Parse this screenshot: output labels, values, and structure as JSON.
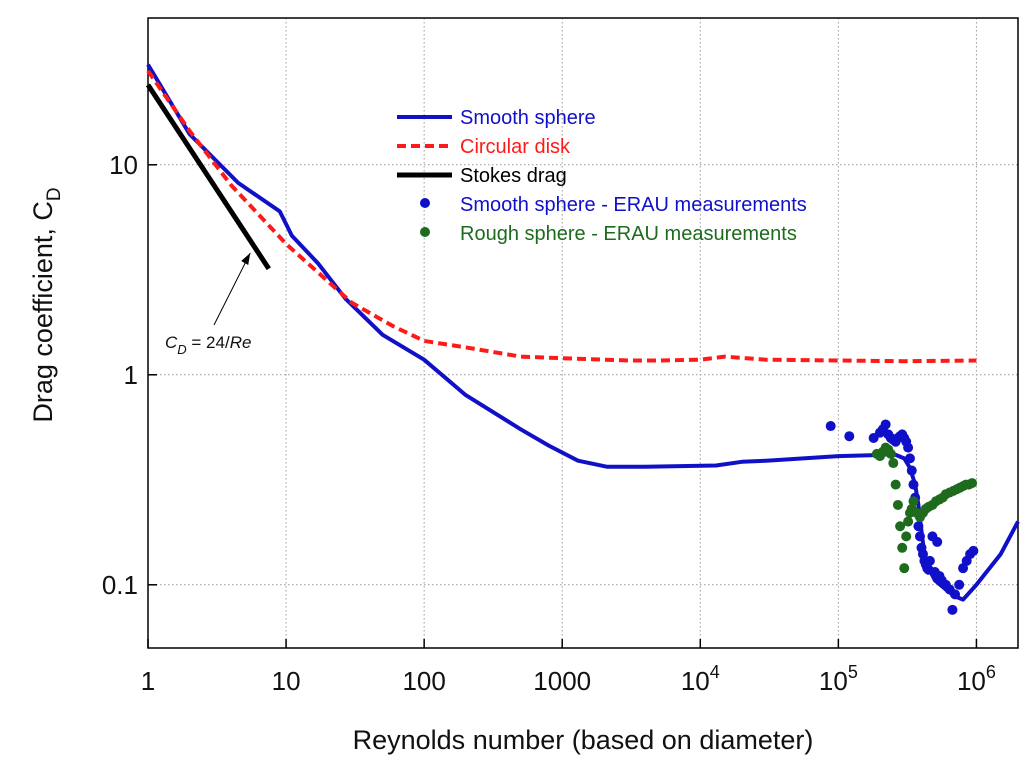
{
  "chart_data": {
    "type": "line",
    "scale": {
      "x": "log",
      "y": "log"
    },
    "xlim": [
      1,
      2000000
    ],
    "ylim": [
      0.05,
      50
    ],
    "grid": true,
    "xlabel": "Reynolds number (based on diameter)",
    "ylabel": {
      "main": "Drag coefficient, C",
      "sub": "D"
    },
    "x_ticks": [
      {
        "value": 1,
        "base": "1",
        "exp": ""
      },
      {
        "value": 10,
        "base": "10",
        "exp": ""
      },
      {
        "value": 100,
        "base": "100",
        "exp": ""
      },
      {
        "value": 1000,
        "base": "1000",
        "exp": ""
      },
      {
        "value": 10000,
        "base": "10",
        "exp": "4"
      },
      {
        "value": 100000,
        "base": "10",
        "exp": "5"
      },
      {
        "value": 1000000,
        "base": "10",
        "exp": "6"
      }
    ],
    "y_ticks": [
      {
        "value": 10,
        "label": "10"
      },
      {
        "value": 1,
        "label": "1"
      },
      {
        "value": 0.1,
        "label": "0.1"
      }
    ],
    "legend_position": "upper-center",
    "series": [
      {
        "name": "Smooth sphere",
        "kind": "line",
        "color": "#1010c8",
        "dash": "solid",
        "x": [
          1,
          2,
          4.5,
          9,
          11,
          17,
          27,
          50,
          100,
          200,
          500,
          800,
          1300,
          2100,
          4000,
          13000,
          20000,
          30000,
          100000,
          200000,
          250000,
          300000,
          330000,
          360000,
          380000,
          400000,
          420000,
          450000,
          500000,
          600000,
          700000,
          800000,
          1000000,
          1500000,
          2000000
        ],
        "y": [
          30,
          14,
          8.2,
          6,
          4.6,
          3.4,
          2.3,
          1.55,
          1.18,
          0.8,
          0.55,
          0.46,
          0.39,
          0.365,
          0.365,
          0.37,
          0.385,
          0.39,
          0.41,
          0.415,
          0.42,
          0.4,
          0.36,
          0.3,
          0.24,
          0.18,
          0.14,
          0.12,
          0.105,
          0.095,
          0.088,
          0.085,
          0.1,
          0.14,
          0.2
        ]
      },
      {
        "name": "Circular disk",
        "kind": "line",
        "color": "#ff1a1a",
        "dash": "dashed",
        "x": [
          1,
          2,
          4,
          10,
          30,
          60,
          100,
          200,
          500,
          1000,
          3000,
          5000,
          10000,
          15000,
          30000,
          100000,
          300000,
          1000000
        ],
        "y": [
          28,
          14.5,
          8,
          4.2,
          2.2,
          1.7,
          1.45,
          1.35,
          1.22,
          1.2,
          1.17,
          1.17,
          1.18,
          1.22,
          1.18,
          1.17,
          1.16,
          1.17
        ]
      },
      {
        "name": "Stokes drag",
        "kind": "line",
        "color": "#000000",
        "dash": "solid",
        "x": [
          1,
          7.5
        ],
        "y": [
          24,
          3.2
        ]
      },
      {
        "name": "Smooth sphere - ERAU measurements",
        "kind": "scatter",
        "color": "#1010c8",
        "x": [
          88000,
          120000,
          180000,
          200000,
          210000,
          220000,
          230000,
          240000,
          250000,
          260000,
          270000,
          280000,
          290000,
          300000,
          310000,
          320000,
          330000,
          340000,
          350000,
          360000,
          370000,
          380000,
          390000,
          400000,
          410000,
          420000,
          430000,
          440000,
          450000,
          460000,
          480000,
          500000,
          520000,
          540000,
          560000,
          600000,
          640000,
          670000,
          700000,
          750000,
          800000,
          850000,
          900000,
          950000
        ],
        "y": [
          0.57,
          0.51,
          0.5,
          0.53,
          0.55,
          0.58,
          0.52,
          0.5,
          0.49,
          0.48,
          0.5,
          0.51,
          0.52,
          0.5,
          0.48,
          0.45,
          0.4,
          0.35,
          0.3,
          0.26,
          0.22,
          0.19,
          0.17,
          0.15,
          0.14,
          0.13,
          0.125,
          0.12,
          0.118,
          0.13,
          0.17,
          0.115,
          0.16,
          0.11,
          0.105,
          0.1,
          0.095,
          0.076,
          0.09,
          0.1,
          0.12,
          0.13,
          0.14,
          0.145
        ]
      },
      {
        "name": "Rough sphere - ERAU measurements",
        "kind": "scatter",
        "color": "#1e6b1e",
        "x": [
          190000,
          200000,
          210000,
          220000,
          230000,
          240000,
          250000,
          260000,
          270000,
          280000,
          290000,
          300000,
          310000,
          320000,
          330000,
          340000,
          350000,
          370000,
          390000,
          410000,
          430000,
          450000,
          480000,
          510000,
          540000,
          570000,
          600000,
          640000,
          680000,
          720000,
          760000,
          800000,
          840000,
          880000,
          930000
        ],
        "y": [
          0.42,
          0.41,
          0.43,
          0.45,
          0.44,
          0.42,
          0.38,
          0.3,
          0.24,
          0.19,
          0.15,
          0.12,
          0.17,
          0.2,
          0.22,
          0.23,
          0.25,
          0.22,
          0.21,
          0.22,
          0.23,
          0.235,
          0.24,
          0.25,
          0.255,
          0.26,
          0.27,
          0.275,
          0.28,
          0.285,
          0.29,
          0.295,
          0.3,
          0.3,
          0.305
        ]
      }
    ],
    "annotations": [
      {
        "label_main": "C",
        "label_sub": "D",
        "label_rest": " = 24/",
        "label_ital": "Re",
        "arrow_to": {
          "x": 5.5,
          "y": 3.8
        }
      }
    ]
  }
}
